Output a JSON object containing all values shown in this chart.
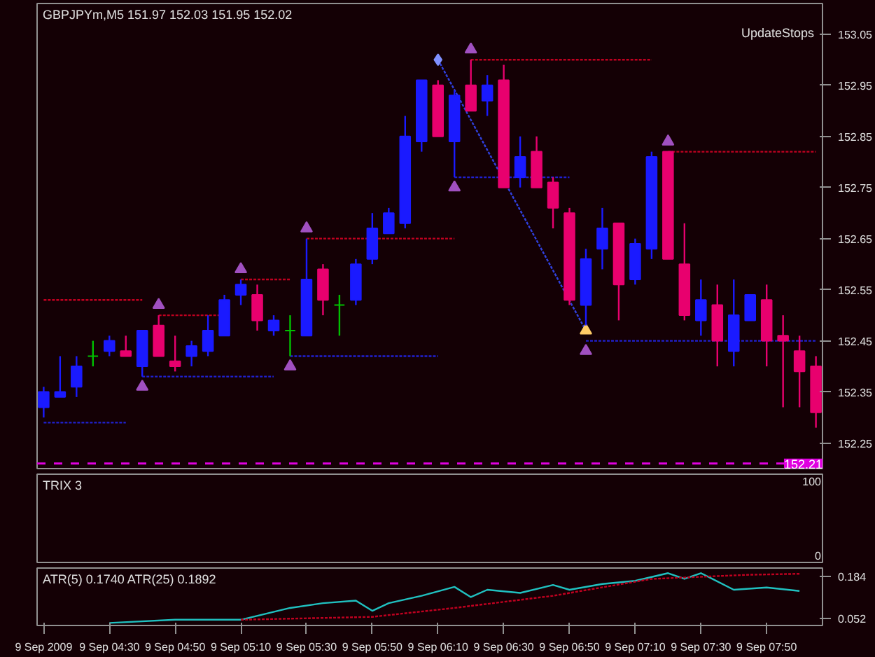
{
  "chart_data": [
    {
      "type": "candlestick",
      "title": "GBPJPYm,M5  151.97 152.03 151.95 152.02",
      "annotations": [
        "UpdateStops"
      ],
      "x": [
        "2009-09-09T04:10",
        "2009-09-09T04:15",
        "2009-09-09T04:20",
        "2009-09-09T04:25",
        "2009-09-09T04:30",
        "2009-09-09T04:35",
        "2009-09-09T04:40",
        "2009-09-09T04:45",
        "2009-09-09T04:50",
        "2009-09-09T04:55",
        "2009-09-09T05:00",
        "2009-09-09T05:05",
        "2009-09-09T05:10",
        "2009-09-09T05:15",
        "2009-09-09T05:20",
        "2009-09-09T05:25",
        "2009-09-09T05:30",
        "2009-09-09T05:35",
        "2009-09-09T05:40",
        "2009-09-09T05:45",
        "2009-09-09T05:50",
        "2009-09-09T05:55",
        "2009-09-09T06:00",
        "2009-09-09T06:05",
        "2009-09-09T06:10",
        "2009-09-09T06:15",
        "2009-09-09T06:20",
        "2009-09-09T06:25",
        "2009-09-09T06:30",
        "2009-09-09T06:35",
        "2009-09-09T06:40",
        "2009-09-09T06:45",
        "2009-09-09T06:50",
        "2009-09-09T06:55",
        "2009-09-09T07:00",
        "2009-09-09T07:05",
        "2009-09-09T07:10",
        "2009-09-09T07:15",
        "2009-09-09T07:20",
        "2009-09-09T07:25",
        "2009-09-09T07:30",
        "2009-09-09T07:35",
        "2009-09-09T07:40",
        "2009-09-09T07:45",
        "2009-09-09T07:50",
        "2009-09-09T07:55",
        "2009-09-09T08:00",
        "2009-09-09T08:05"
      ],
      "ohlc": [
        [
          152.32,
          152.36,
          152.3,
          152.35
        ],
        [
          152.34,
          152.42,
          152.34,
          152.35
        ],
        [
          152.36,
          152.42,
          152.34,
          152.4
        ],
        [
          152.42,
          152.45,
          152.4,
          152.42
        ],
        [
          152.43,
          152.46,
          152.42,
          152.45
        ],
        [
          152.43,
          152.46,
          152.42,
          152.42
        ],
        [
          152.4,
          152.47,
          152.38,
          152.47
        ],
        [
          152.48,
          152.5,
          152.42,
          152.42
        ],
        [
          152.41,
          152.46,
          152.39,
          152.4
        ],
        [
          152.42,
          152.45,
          152.4,
          152.44
        ],
        [
          152.43,
          152.5,
          152.42,
          152.47
        ],
        [
          152.46,
          152.54,
          152.46,
          152.53
        ],
        [
          152.54,
          152.57,
          152.52,
          152.56
        ],
        [
          152.54,
          152.56,
          152.47,
          152.49
        ],
        [
          152.47,
          152.5,
          152.46,
          152.49
        ],
        [
          152.47,
          152.5,
          152.42,
          152.47
        ],
        [
          152.46,
          152.65,
          152.46,
          152.57
        ],
        [
          152.59,
          152.6,
          152.5,
          152.53
        ],
        [
          152.52,
          152.54,
          152.46,
          152.52
        ],
        [
          152.53,
          152.61,
          152.52,
          152.6
        ],
        [
          152.61,
          152.7,
          152.6,
          152.67
        ],
        [
          152.66,
          152.71,
          152.66,
          152.7
        ],
        [
          152.68,
          152.89,
          152.67,
          152.85
        ],
        [
          152.84,
          152.96,
          152.82,
          152.96
        ],
        [
          152.95,
          152.96,
          152.85,
          152.85
        ],
        [
          152.84,
          152.94,
          152.77,
          152.93
        ],
        [
          152.95,
          153.0,
          152.9,
          152.9
        ],
        [
          152.92,
          152.97,
          152.89,
          152.95
        ],
        [
          152.96,
          152.99,
          152.75,
          152.75
        ],
        [
          152.77,
          152.85,
          152.75,
          152.81
        ],
        [
          152.82,
          152.85,
          152.75,
          152.75
        ],
        [
          152.76,
          152.77,
          152.67,
          152.71
        ],
        [
          152.7,
          152.71,
          152.52,
          152.53
        ],
        [
          152.52,
          152.63,
          152.48,
          152.61
        ],
        [
          152.63,
          152.71,
          152.59,
          152.67
        ],
        [
          152.68,
          152.68,
          152.49,
          152.56
        ],
        [
          152.57,
          152.65,
          152.56,
          152.64
        ],
        [
          152.63,
          152.82,
          152.61,
          152.81
        ],
        [
          152.82,
          152.82,
          152.61,
          152.61
        ],
        [
          152.6,
          152.68,
          152.49,
          152.5
        ],
        [
          152.49,
          152.57,
          152.46,
          152.53
        ],
        [
          152.52,
          152.56,
          152.4,
          152.45
        ],
        [
          152.43,
          152.57,
          152.4,
          152.5
        ],
        [
          152.49,
          152.54,
          152.49,
          152.54
        ],
        [
          152.53,
          152.56,
          152.4,
          152.45
        ],
        [
          152.46,
          152.5,
          152.32,
          152.45
        ],
        [
          152.43,
          152.46,
          152.32,
          152.39
        ],
        [
          152.4,
          152.42,
          152.28,
          152.31
        ]
      ],
      "colors": [
        "#1a1aff",
        "#1a1aff",
        "#1a1aff",
        "#00c000",
        "#1a1aff",
        "#e8006e",
        "#1a1aff",
        "#e8006e",
        "#e8006e",
        "#1a1aff",
        "#1a1aff",
        "#1a1aff",
        "#1a1aff",
        "#e8006e",
        "#1a1aff",
        "#00c000",
        "#1a1aff",
        "#e8006e",
        "#00c000",
        "#1a1aff",
        "#1a1aff",
        "#1a1aff",
        "#1a1aff",
        "#1a1aff",
        "#e8006e",
        "#1a1aff",
        "#e8006e",
        "#1a1aff",
        "#e8006e",
        "#1a1aff",
        "#e8006e",
        "#e8006e",
        "#e8006e",
        "#1a1aff",
        "#1a1aff",
        "#e8006e",
        "#1a1aff",
        "#1a1aff",
        "#e8006e",
        "#e8006e",
        "#1a1aff",
        "#e8006e",
        "#1a1aff",
        "#1a1aff",
        "#e8006e",
        "#e8006e",
        "#e8006e",
        "#e8006e"
      ],
      "series": [
        {
          "type": "line",
          "line_style": "dotted",
          "color": "#c00020",
          "x": [
            "2009-09-09T04:10",
            "2009-09-09T04:40"
          ],
          "values": [
            152.53,
            152.53
          ]
        },
        {
          "type": "line",
          "line_style": "dotted",
          "color": "#c00020",
          "x": [
            "2009-09-09T04:45",
            "2009-09-09T05:05"
          ],
          "values": [
            152.5,
            152.5
          ]
        },
        {
          "type": "line",
          "line_style": "dotted",
          "color": "#c00020",
          "x": [
            "2009-09-09T05:10",
            "2009-09-09T05:25"
          ],
          "values": [
            152.57,
            152.57
          ]
        },
        {
          "type": "line",
          "line_style": "dotted",
          "color": "#c00020",
          "x": [
            "2009-09-09T05:30",
            "2009-09-09T06:15"
          ],
          "values": [
            152.65,
            152.65
          ]
        },
        {
          "type": "line",
          "line_style": "dotted",
          "color": "#c00020",
          "x": [
            "2009-09-09T06:20",
            "2009-09-09T07:15"
          ],
          "values": [
            153.0,
            153.0
          ]
        },
        {
          "type": "line",
          "line_style": "dotted",
          "color": "#c00020",
          "x": [
            "2009-09-09T07:20",
            "2009-09-09T08:05"
          ],
          "values": [
            152.82,
            152.82
          ]
        },
        {
          "type": "line",
          "line_style": "dotted",
          "color": "#2020d0",
          "x": [
            "2009-09-09T04:10",
            "2009-09-09T04:35"
          ],
          "values": [
            152.29,
            152.29
          ]
        },
        {
          "type": "line",
          "line_style": "dotted",
          "color": "#2020d0",
          "x": [
            "2009-09-09T04:40",
            "2009-09-09T05:20"
          ],
          "values": [
            152.38,
            152.38
          ]
        },
        {
          "type": "line",
          "line_style": "dotted",
          "color": "#2020d0",
          "x": [
            "2009-09-09T05:25",
            "2009-09-09T06:10"
          ],
          "values": [
            152.42,
            152.42
          ]
        },
        {
          "type": "line",
          "line_style": "dotted",
          "color": "#2020d0",
          "x": [
            "2009-09-09T06:15",
            "2009-09-09T06:50"
          ],
          "values": [
            152.77,
            152.77
          ]
        },
        {
          "type": "line",
          "line_style": "dotted",
          "color": "#2020d0",
          "x": [
            "2009-09-09T06:55",
            "2009-09-09T08:05"
          ],
          "values": [
            152.45,
            152.45
          ]
        },
        {
          "type": "line",
          "line_style": "dotted",
          "color": "#3040e0",
          "x": [
            "2009-09-09T06:10",
            "2009-09-09T06:55"
          ],
          "values": [
            153.0,
            152.47
          ]
        },
        {
          "type": "scatter",
          "marker": "triangle",
          "color": "#a050c0",
          "x": [
            "2009-09-09T04:45",
            "2009-09-09T05:10",
            "2009-09-09T05:30",
            "2009-09-09T06:20",
            "2009-09-09T07:20"
          ],
          "values": [
            152.52,
            152.59,
            152.67,
            153.02,
            152.84
          ]
        },
        {
          "type": "scatter",
          "marker": "triangle",
          "color": "#a050c0",
          "x": [
            "2009-09-09T04:40",
            "2009-09-09T05:25",
            "2009-09-09T06:15",
            "2009-09-09T06:55"
          ],
          "values": [
            152.36,
            152.4,
            152.75,
            152.43
          ]
        },
        {
          "type": "scatter",
          "marker": "diamond",
          "color": "#8090ff",
          "x": [
            "2009-09-09T06:10"
          ],
          "values": [
            153.0
          ]
        },
        {
          "type": "scatter",
          "marker": "triangle",
          "color": "#ffcc66",
          "x": [
            "2009-09-09T06:55"
          ],
          "values": [
            152.47
          ]
        }
      ],
      "xlim": [
        "2009-09-09T04:08",
        "2009-09-09T08:07"
      ],
      "ylim": [
        152.2,
        153.11
      ],
      "yticks": [
        152.25,
        152.35,
        152.45,
        152.55,
        152.65,
        152.75,
        152.85,
        152.95,
        153.05
      ],
      "ref_lines": [
        {
          "axis": "y",
          "value": 152.21,
          "label": "152.21",
          "color": "#e000e0",
          "line_style": "dashed"
        }
      ],
      "tick_labels": "y"
    },
    {
      "type": "other",
      "title": "TRIX 3",
      "annotations": [
        "100",
        "0"
      ]
    },
    {
      "type": "line",
      "title": "ATR(5) 0.1740  ATR(25) 0.1892",
      "series": [
        {
          "color": "#20c0c0",
          "line_style": "solid",
          "x": [
            "2009-09-09T04:30",
            "2009-09-09T04:50",
            "2009-09-09T05:10",
            "2009-09-09T05:25",
            "2009-09-09T05:35",
            "2009-09-09T05:45",
            "2009-09-09T05:50",
            "2009-09-09T05:55",
            "2009-09-09T06:05",
            "2009-09-09T06:15",
            "2009-09-09T06:20",
            "2009-09-09T06:25",
            "2009-09-09T06:35",
            "2009-09-09T06:45",
            "2009-09-09T06:50",
            "2009-09-09T07:00",
            "2009-09-09T07:10",
            "2009-09-09T07:20",
            "2009-09-09T07:25",
            "2009-09-09T07:30",
            "2009-09-09T07:40",
            "2009-09-09T07:50",
            "2009-09-09T08:00"
          ],
          "values": [
            0.038,
            0.048,
            0.048,
            0.085,
            0.1,
            0.108,
            0.076,
            0.1,
            0.123,
            0.151,
            0.119,
            0.142,
            0.132,
            0.157,
            0.142,
            0.16,
            0.17,
            0.194,
            0.176,
            0.194,
            0.142,
            0.149,
            0.138
          ]
        },
        {
          "color": "#c00020",
          "line_style": "dotted",
          "x": [
            "2009-09-09T05:10",
            "2009-09-09T05:50",
            "2009-09-09T06:15",
            "2009-09-09T06:45",
            "2009-09-09T07:15",
            "2009-09-09T07:45",
            "2009-09-09T08:00"
          ],
          "values": [
            0.048,
            0.057,
            0.085,
            0.123,
            0.176,
            0.189,
            0.192
          ]
        }
      ],
      "xlim": [
        "2009-09-09T04:08",
        "2009-09-09T08:07"
      ],
      "ylim": [
        0.03,
        0.21
      ],
      "yticks": [
        0.052,
        0.184
      ],
      "xticks": [
        {
          "value": "2009-09-09T04:10",
          "label": "9 Sep 2009"
        },
        {
          "value": "2009-09-09T04:30",
          "label": "9 Sep 04:30"
        },
        {
          "value": "2009-09-09T04:50",
          "label": "9 Sep 04:50"
        },
        {
          "value": "2009-09-09T05:10",
          "label": "9 Sep 05:10"
        },
        {
          "value": "2009-09-09T05:30",
          "label": "9 Sep 05:30"
        },
        {
          "value": "2009-09-09T05:50",
          "label": "9 Sep 05:50"
        },
        {
          "value": "2009-09-09T06:10",
          "label": "9 Sep 06:10"
        },
        {
          "value": "2009-09-09T06:30",
          "label": "9 Sep 06:30"
        },
        {
          "value": "2009-09-09T06:50",
          "label": "9 Sep 06:50"
        },
        {
          "value": "2009-09-09T07:10",
          "label": "9 Sep 07:10"
        },
        {
          "value": "2009-09-09T07:30",
          "label": "9 Sep 07:30"
        },
        {
          "value": "2009-09-09T07:50",
          "label": "9 Sep 07:50"
        }
      ]
    }
  ]
}
